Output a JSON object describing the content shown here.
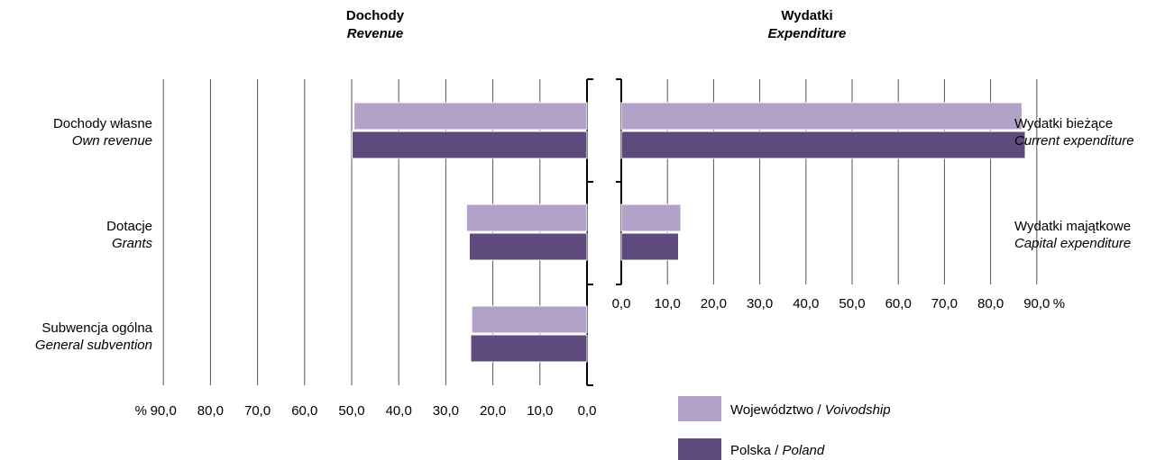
{
  "colors": {
    "voivodship": "#b3a2c8",
    "poland": "#5e4a7c",
    "grid": "#555555",
    "text": "#1a1a1a"
  },
  "chart_data": [
    {
      "type": "bar",
      "orientation": "horizontal",
      "x_direction": "reversed",
      "title": "Dochody",
      "subtitle": "Revenue",
      "categories": [
        {
          "pl": "Dochody własne",
          "en": "Own revenue"
        },
        {
          "pl": "Dotacje",
          "en": "Grants"
        },
        {
          "pl": "Subwencja ogólna",
          "en": "General subvention"
        }
      ],
      "series": [
        {
          "key": "voivodship",
          "values": [
            49.5,
            25.6,
            24.5
          ]
        },
        {
          "key": "poland",
          "values": [
            49.9,
            25.0,
            24.7
          ]
        }
      ],
      "xlim": [
        0,
        90
      ],
      "xticks": [
        "90,0",
        "80,0",
        "70,0",
        "60,0",
        "50,0",
        "40,0",
        "30,0",
        "20,0",
        "10,0",
        "0,0"
      ],
      "unit_label": "%",
      "grid": true
    },
    {
      "type": "bar",
      "orientation": "horizontal",
      "title": "Wydatki",
      "subtitle": "Expenditure",
      "categories": [
        {
          "pl": "Wydatki bieżące",
          "en": "Current expenditure"
        },
        {
          "pl": "Wydatki majątkowe",
          "en": "Capital expenditure"
        }
      ],
      "series": [
        {
          "key": "voivodship",
          "values": [
            86.8,
            12.9
          ]
        },
        {
          "key": "poland",
          "values": [
            87.5,
            12.4
          ]
        }
      ],
      "xlim": [
        0,
        90
      ],
      "xticks": [
        "0,0",
        "10,0",
        "20,0",
        "30,0",
        "40,0",
        "50,0",
        "60,0",
        "70,0",
        "80,0",
        "90,0"
      ],
      "unit_label": "%",
      "grid": true
    }
  ],
  "legend": [
    {
      "key": "voivodship",
      "pl": "Województwo / ",
      "en": "Voivodship"
    },
    {
      "key": "poland",
      "pl": "Polska / ",
      "en": "Poland"
    }
  ]
}
